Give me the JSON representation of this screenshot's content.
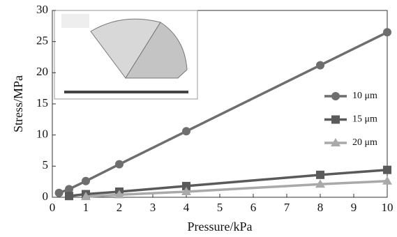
{
  "chart_data": {
    "type": "line",
    "x_label": "Pressure/kPa",
    "y_label": "Stress/MPa",
    "xlim": [
      0,
      10
    ],
    "xticks": [
      0,
      1,
      2,
      3,
      4,
      5,
      6,
      7,
      8,
      9,
      10
    ],
    "ylim": [
      0,
      30
    ],
    "yticks": [
      0,
      5,
      10,
      15,
      20,
      25,
      30
    ],
    "series": [
      {
        "name": "10 μm",
        "color": "#6e6e6e",
        "marker": "circle",
        "x": [
          0.2,
          0.5,
          1,
          2,
          4,
          8,
          10
        ],
        "values": [
          0.7,
          1.3,
          2.6,
          5.3,
          10.6,
          21.2,
          26.5
        ]
      },
      {
        "name": "15 μm",
        "color": "#5a5a5a",
        "marker": "square",
        "x": [
          0.5,
          1,
          2,
          4,
          8,
          10
        ],
        "values": [
          0.2,
          0.5,
          0.9,
          1.8,
          3.6,
          4.4
        ]
      },
      {
        "name": "20 μm",
        "color": "#a9a9a9",
        "marker": "triangle",
        "x": [
          1,
          2,
          4,
          8,
          10
        ],
        "values": [
          0.1,
          0.4,
          0.9,
          2.1,
          2.6
        ]
      }
    ]
  }
}
